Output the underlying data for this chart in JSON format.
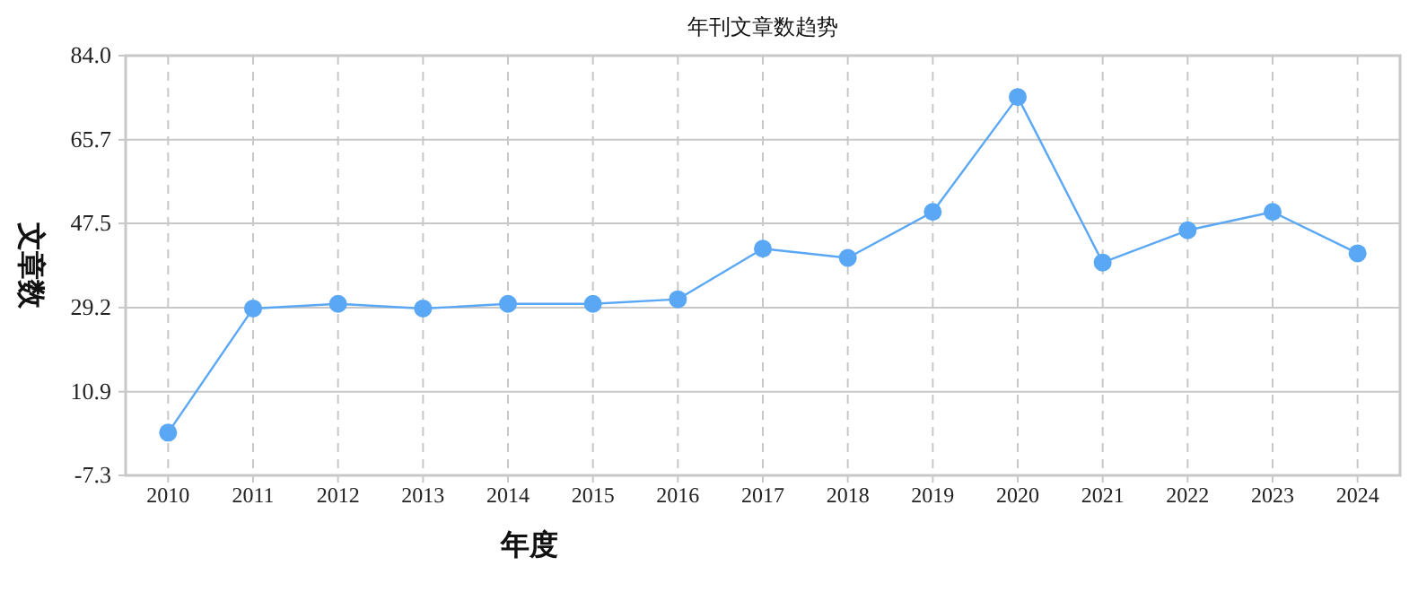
{
  "chart_data": {
    "type": "line",
    "title": "年刊文章数趋势",
    "xlabel": "年度",
    "ylabel": "文章数",
    "categories": [
      "2010",
      "2011",
      "2012",
      "2013",
      "2014",
      "2015",
      "2016",
      "2017",
      "2018",
      "2019",
      "2020",
      "2021",
      "2022",
      "2023",
      "2024"
    ],
    "series": [
      {
        "color": "#5aa8f5",
        "values": [
          2,
          29,
          30,
          29,
          30,
          30,
          31,
          42,
          40,
          50,
          75,
          39,
          46,
          50,
          41
        ]
      }
    ],
    "ylim": [
      -7.3,
      84.0
    ],
    "yticks": [
      {
        "value": -7.3,
        "label": "-7.3"
      },
      {
        "value": 10.9,
        "label": "10.9"
      },
      {
        "value": 29.2,
        "label": "29.2"
      },
      {
        "value": 47.5,
        "label": "47.5"
      },
      {
        "value": 65.7,
        "label": "65.7"
      },
      {
        "value": 84.0,
        "label": "84.0"
      }
    ],
    "grid": true,
    "marker": "circle",
    "line_style": "solid"
  }
}
